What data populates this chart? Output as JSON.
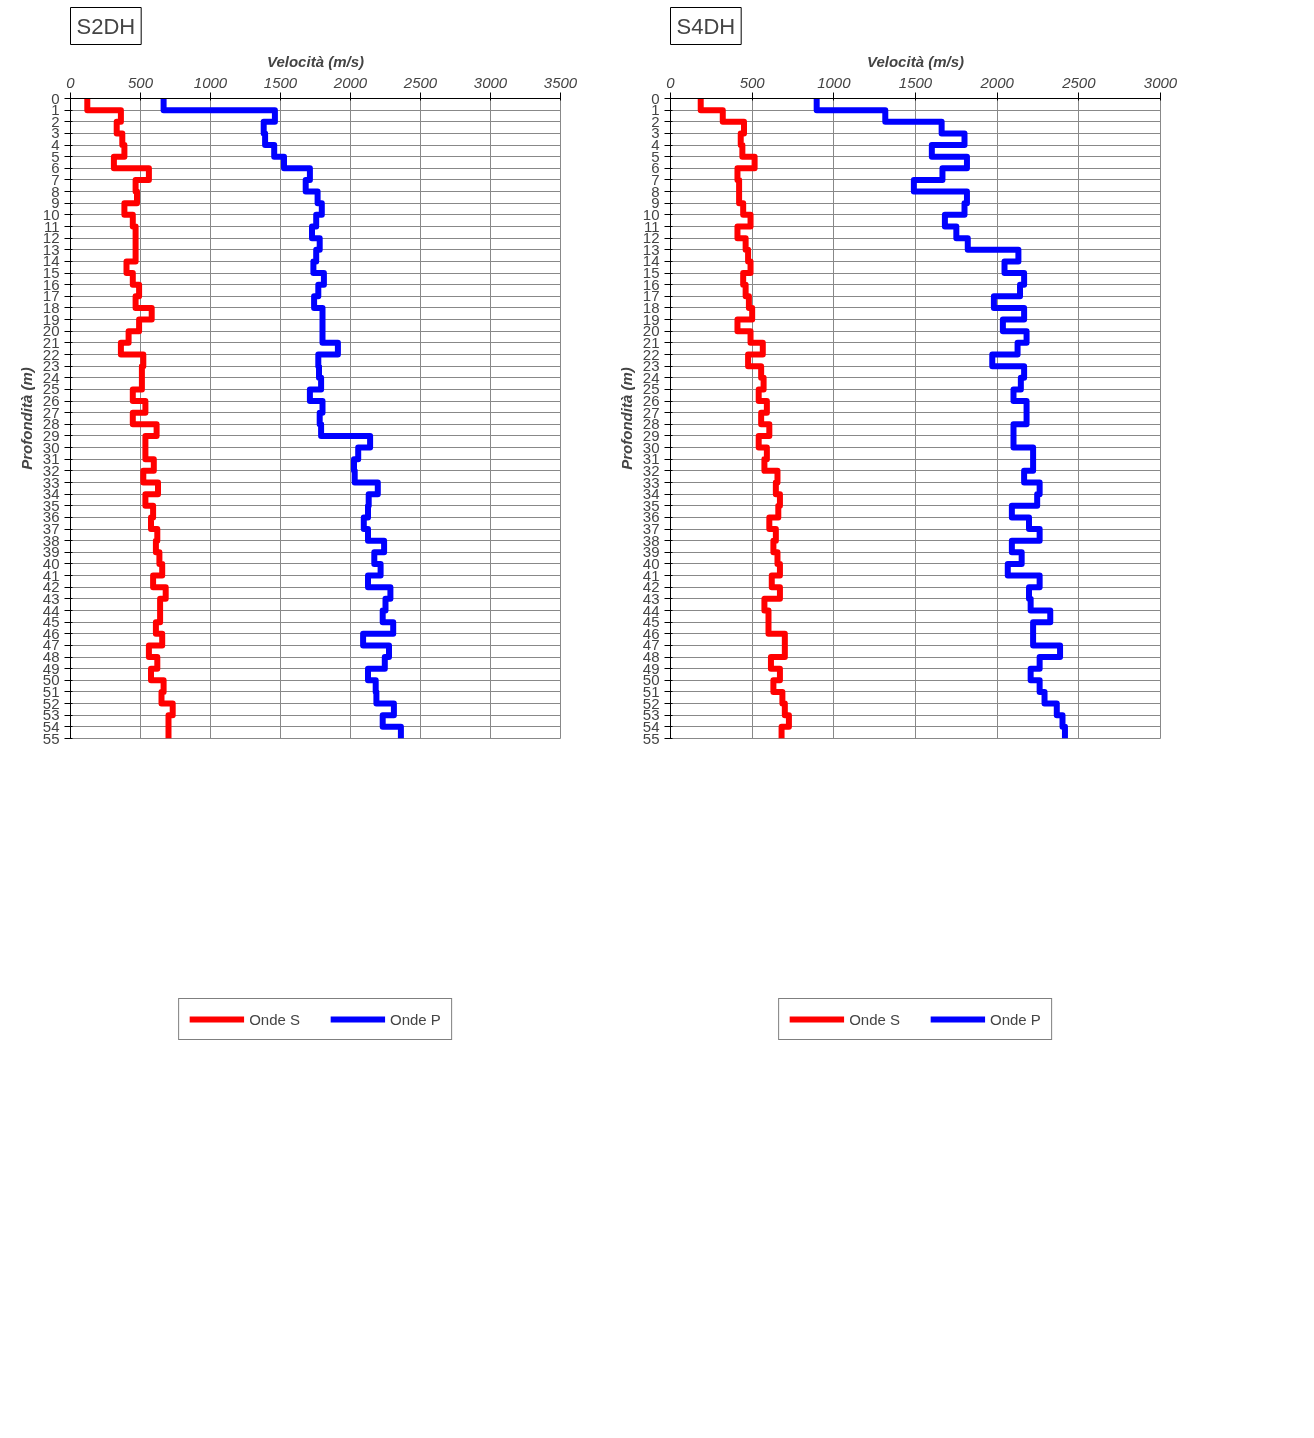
{
  "chart_data": [
    {
      "type": "step",
      "title": "S2DH",
      "xlabel": "Velocità (m/s)",
      "ylabel": "Profondità (m)",
      "orientation": "horizontal",
      "x": [
        0,
        1,
        2,
        3,
        4,
        5,
        6,
        7,
        8,
        9,
        10,
        11,
        12,
        13,
        14,
        15,
        16,
        17,
        18,
        19,
        20,
        21,
        22,
        23,
        24,
        25,
        26,
        27,
        28,
        29,
        30,
        31,
        32,
        33,
        34,
        35,
        36,
        37,
        38,
        39,
        40,
        41,
        42,
        43,
        44,
        45,
        46,
        47,
        48,
        49,
        50,
        51,
        52,
        53,
        54,
        55
      ],
      "xlim": [
        0,
        3500
      ],
      "xticks": [
        0,
        500,
        1000,
        1500,
        2000,
        2500,
        3000,
        3500
      ],
      "ylim": [
        55,
        0
      ],
      "yticks": [
        0,
        1,
        2,
        3,
        4,
        5,
        6,
        7,
        8,
        9,
        10,
        11,
        12,
        13,
        14,
        15,
        16,
        17,
        18,
        19,
        20,
        21,
        22,
        23,
        24,
        25,
        26,
        27,
        28,
        29,
        30,
        31,
        32,
        33,
        34,
        35,
        36,
        37,
        38,
        39,
        40,
        41,
        42,
        43,
        44,
        45,
        46,
        47,
        48,
        49,
        50,
        51,
        52,
        53,
        54,
        55
      ],
      "grid": true,
      "legend": "bottom",
      "series": [
        {
          "name": "Onde S",
          "color": "#ff0000",
          "values": [
            120,
            360,
            330,
            370,
            385,
            310,
            560,
            465,
            475,
            385,
            445,
            465,
            465,
            465,
            400,
            445,
            490,
            465,
            580,
            490,
            415,
            360,
            520,
            510,
            510,
            445,
            535,
            445,
            615,
            535,
            535,
            595,
            520,
            625,
            535,
            590,
            575,
            620,
            610,
            635,
            655,
            590,
            680,
            640,
            640,
            610,
            655,
            560,
            620,
            575,
            665,
            650,
            730,
            700,
            700,
            700
          ]
        },
        {
          "name": "Onde P",
          "color": "#0000ff",
          "values": [
            665,
            1460,
            1380,
            1390,
            1455,
            1525,
            1710,
            1680,
            1765,
            1795,
            1755,
            1725,
            1780,
            1755,
            1735,
            1810,
            1770,
            1740,
            1800,
            1800,
            1800,
            1910,
            1770,
            1775,
            1790,
            1710,
            1800,
            1780,
            1790,
            2140,
            2055,
            2025,
            2030,
            2195,
            2130,
            2125,
            2095,
            2125,
            2240,
            2170,
            2215,
            2125,
            2285,
            2250,
            2230,
            2305,
            2090,
            2275,
            2245,
            2125,
            2180,
            2185,
            2310,
            2230,
            2360,
            2360
          ]
        }
      ]
    },
    {
      "type": "step",
      "title": "S4DH",
      "xlabel": "Velocità (m/s)",
      "ylabel": "Profondità (m)",
      "orientation": "horizontal",
      "x": [
        0,
        1,
        2,
        3,
        4,
        5,
        6,
        7,
        8,
        9,
        10,
        11,
        12,
        13,
        14,
        15,
        16,
        17,
        18,
        19,
        20,
        21,
        22,
        23,
        24,
        25,
        26,
        27,
        28,
        29,
        30,
        31,
        32,
        33,
        34,
        35,
        36,
        37,
        38,
        39,
        40,
        41,
        42,
        43,
        44,
        45,
        46,
        47,
        48,
        49,
        50,
        51,
        52,
        53,
        54,
        55
      ],
      "xlim": [
        0,
        3000
      ],
      "xticks": [
        0,
        500,
        1000,
        1500,
        2000,
        2500,
        3000
      ],
      "ylim": [
        55,
        0
      ],
      "yticks": [
        0,
        1,
        2,
        3,
        4,
        5,
        6,
        7,
        8,
        9,
        10,
        11,
        12,
        13,
        14,
        15,
        16,
        17,
        18,
        19,
        20,
        21,
        22,
        23,
        24,
        25,
        26,
        27,
        28,
        29,
        30,
        31,
        32,
        33,
        34,
        35,
        36,
        37,
        38,
        39,
        40,
        41,
        42,
        43,
        44,
        45,
        46,
        47,
        48,
        49,
        50,
        51,
        52,
        53,
        54,
        55
      ],
      "grid": true,
      "legend": "bottom",
      "series": [
        {
          "name": "Onde S",
          "color": "#ff0000",
          "values": [
            185,
            320,
            450,
            430,
            440,
            515,
            410,
            420,
            420,
            445,
            490,
            410,
            460,
            475,
            490,
            445,
            460,
            480,
            500,
            410,
            490,
            565,
            475,
            555,
            570,
            540,
            590,
            555,
            605,
            540,
            590,
            575,
            655,
            645,
            670,
            660,
            605,
            645,
            630,
            655,
            670,
            620,
            670,
            575,
            600,
            600,
            700,
            700,
            615,
            670,
            630,
            685,
            700,
            725,
            680,
            680
          ]
        },
        {
          "name": "Onde P",
          "color": "#0000ff",
          "values": [
            895,
            1315,
            1660,
            1800,
            1600,
            1815,
            1665,
            1490,
            1815,
            1800,
            1680,
            1750,
            1820,
            2130,
            2045,
            2165,
            2140,
            1980,
            2165,
            2035,
            2180,
            2125,
            1970,
            2165,
            2145,
            2100,
            2180,
            2180,
            2100,
            2100,
            2220,
            2220,
            2165,
            2260,
            2245,
            2090,
            2195,
            2260,
            2090,
            2150,
            2065,
            2260,
            2195,
            2205,
            2325,
            2220,
            2220,
            2385,
            2260,
            2205,
            2260,
            2290,
            2365,
            2400,
            2415,
            2415
          ]
        }
      ]
    }
  ]
}
